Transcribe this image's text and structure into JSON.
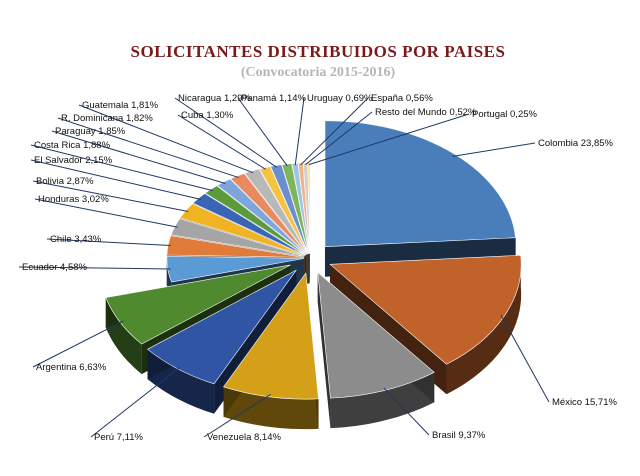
{
  "chart_data": {
    "type": "pie",
    "title": "SOLICITANTES DISTRIBUIDOS POR PAISES",
    "subtitle": "(Convocatoria 2015-2016)",
    "slices": [
      {
        "label": "Colombia 23,85%",
        "value": 23.85,
        "color": "#4a7ebb"
      },
      {
        "label": "México 15,71%",
        "value": 15.71,
        "color": "#c0622a"
      },
      {
        "label": "Brasil 9,37%",
        "value": 9.37,
        "color": "#8c8c8c"
      },
      {
        "label": "Venezuela 8,14%",
        "value": 8.14,
        "color": "#d4a017"
      },
      {
        "label": "Perú 7,11%",
        "value": 7.11,
        "color": "#2f55a4"
      },
      {
        "label": "Argentina 6,63%",
        "value": 6.63,
        "color": "#4f8a2e"
      },
      {
        "label": "Ecuador 4,58%",
        "value": 4.58,
        "color": "#5b9bd5"
      },
      {
        "label": "Chile 3,43%",
        "value": 3.43,
        "color": "#e07b39"
      },
      {
        "label": "Honduras 3,02%",
        "value": 3.02,
        "color": "#a5a5a5"
      },
      {
        "label": "Bolivia 2,87%",
        "value": 2.87,
        "color": "#f0b323"
      },
      {
        "label": "El Salvador 2,15%",
        "value": 2.15,
        "color": "#3a64b5"
      },
      {
        "label": "Costa Rica 1,88%",
        "value": 1.88,
        "color": "#5b9b3c"
      },
      {
        "label": "Paraguay 1,85%",
        "value": 1.85,
        "color": "#7ea6dc"
      },
      {
        "label": "R. Dominicana 1,82%",
        "value": 1.82,
        "color": "#e88a5e"
      },
      {
        "label": "Guatemala 1,81%",
        "value": 1.81,
        "color": "#b8b8b8"
      },
      {
        "label": "Cuba 1,30%",
        "value": 1.3,
        "color": "#f5c342"
      },
      {
        "label": "Nicaragua 1,29%",
        "value": 1.29,
        "color": "#6a8fd0"
      },
      {
        "label": "Panamá 1,14%",
        "value": 1.14,
        "color": "#7fb55a"
      },
      {
        "label": "Uruguay 0,69%",
        "value": 0.69,
        "color": "#9dc3e6"
      },
      {
        "label": "España 0,56%",
        "value": 0.56,
        "color": "#f4b183"
      },
      {
        "label": "Resto del Mundo 0,52%",
        "value": 0.52,
        "color": "#d0d0d0"
      },
      {
        "label": "Portugal 0,25%",
        "value": 0.25,
        "color": "#ffd966"
      }
    ]
  }
}
